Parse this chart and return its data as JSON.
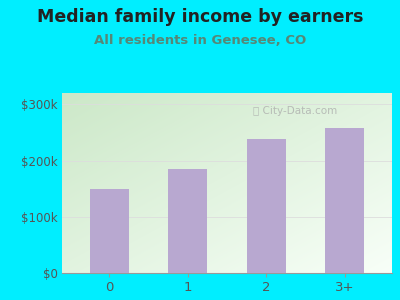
{
  "title": "Median family income by earners",
  "subtitle": "All residents in Genesee, CO",
  "categories": [
    "0",
    "1",
    "2",
    "3+"
  ],
  "values": [
    150000,
    185000,
    238000,
    258000
  ],
  "bar_color": "#b8a8d0",
  "background_color": "#00eeff",
  "plot_bg_color_topleft": "#cce8c8",
  "plot_bg_color_bottomright": "#f8fff8",
  "title_color": "#222222",
  "subtitle_color": "#558877",
  "yticks": [
    0,
    100000,
    200000,
    300000
  ],
  "ytick_labels": [
    "$0",
    "$100k",
    "$200k",
    "$300k"
  ],
  "ylim": [
    0,
    320000
  ],
  "title_fontsize": 12.5,
  "subtitle_fontsize": 9.5,
  "watermark": "City-Data.com"
}
